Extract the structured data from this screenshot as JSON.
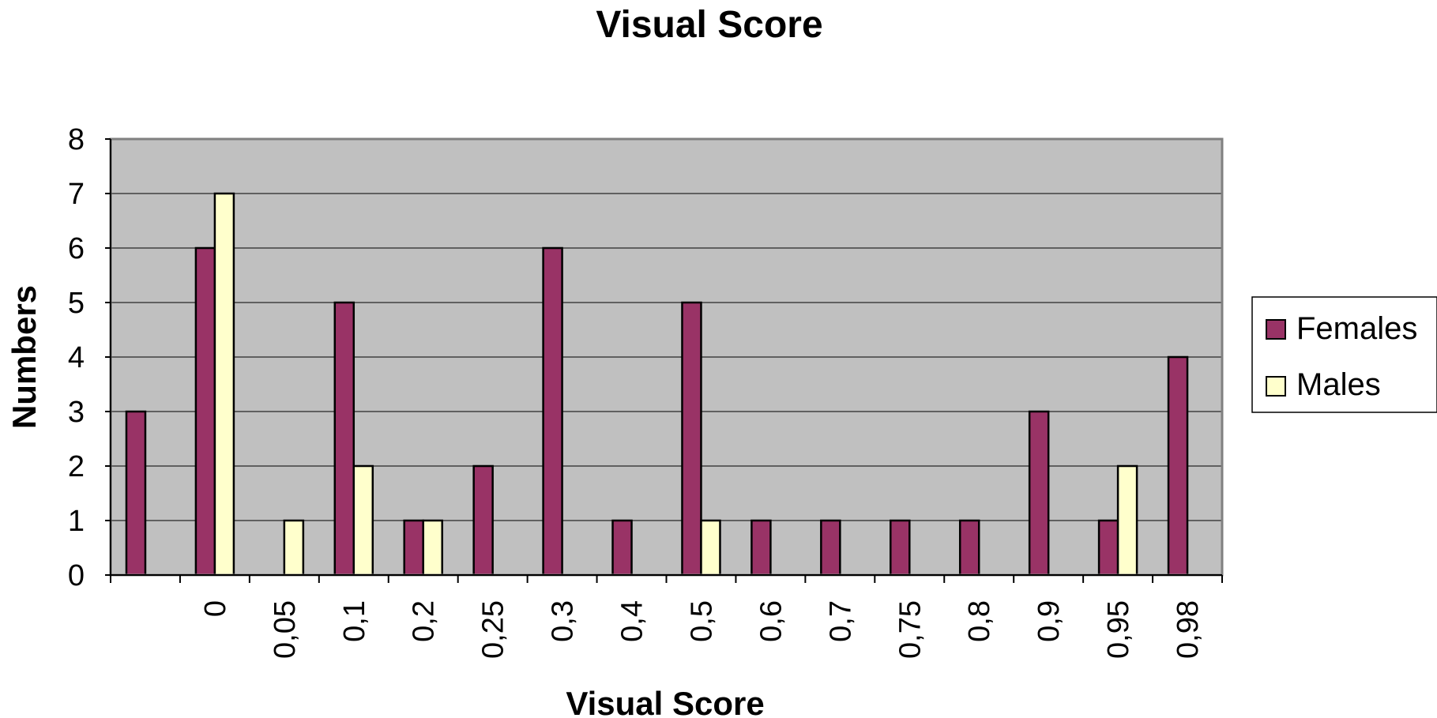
{
  "chart_data": {
    "type": "bar",
    "title": "Visual Score",
    "xlabel": "Visual Score",
    "ylabel": "Numbers",
    "categories": [
      "",
      "0",
      "0,05",
      "0,1",
      "0,2",
      "0,25",
      "0,3",
      "0,4",
      "0,5",
      "0,6",
      "0,7",
      "0,75",
      "0,8",
      "0,9",
      "0,95",
      "0,98"
    ],
    "series": [
      {
        "name": "Females",
        "color": "#993366",
        "values": [
          3,
          6,
          0,
          5,
          1,
          2,
          6,
          1,
          5,
          1,
          1,
          1,
          1,
          3,
          1,
          4
        ]
      },
      {
        "name": "Males",
        "color": "#FFFFCC",
        "values": [
          0,
          7,
          1,
          2,
          1,
          0,
          0,
          0,
          1,
          0,
          0,
          0,
          0,
          0,
          2,
          0
        ]
      }
    ],
    "ylim": [
      0,
      8
    ],
    "yticks": [
      "0",
      "1",
      "2",
      "3",
      "4",
      "5",
      "6",
      "7",
      "8"
    ],
    "grid": true,
    "plot_background": "#C0C0C0",
    "legend_position": "right"
  }
}
